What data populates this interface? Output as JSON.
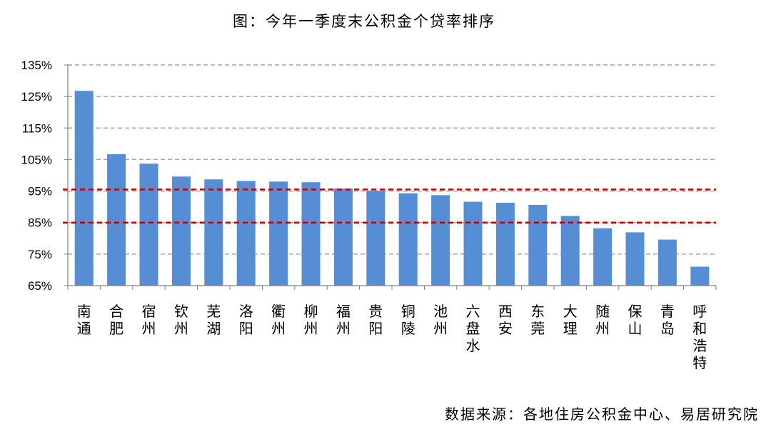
{
  "chart_data": {
    "type": "bar",
    "title": "图：今年一季度末公积金个贷率排序",
    "source": "数据来源：各地住房公积金中心、易居研究院",
    "categories": [
      "南通",
      "合肥",
      "宿州",
      "钦州",
      "芜湖",
      "洛阳",
      "衢州",
      "柳州",
      "福州",
      "贵阳",
      "铜陵",
      "池州",
      "六盘水",
      "西安",
      "东莞",
      "大理",
      "随州",
      "保山",
      "青岛",
      "呼和浩特"
    ],
    "values": [
      126.8,
      106.7,
      103.7,
      99.6,
      98.7,
      98.2,
      98.0,
      97.8,
      95.8,
      95.1,
      94.3,
      93.7,
      91.6,
      91.3,
      90.6,
      87.1,
      83.2,
      81.9,
      79.6,
      71.0
    ],
    "ylim": [
      65,
      135
    ],
    "yticks": [
      65,
      75,
      85,
      95,
      105,
      115,
      125,
      135
    ],
    "ytick_labels": [
      "65%",
      "75%",
      "85%",
      "95%",
      "105%",
      "115%",
      "125%",
      "135%"
    ],
    "reference_lines": [
      95.5,
      85
    ],
    "grid": true,
    "colors": {
      "bar": "#558ED5",
      "reference_line": "#C00000",
      "grid": "#A6A6A6",
      "axis": "#808080"
    }
  }
}
